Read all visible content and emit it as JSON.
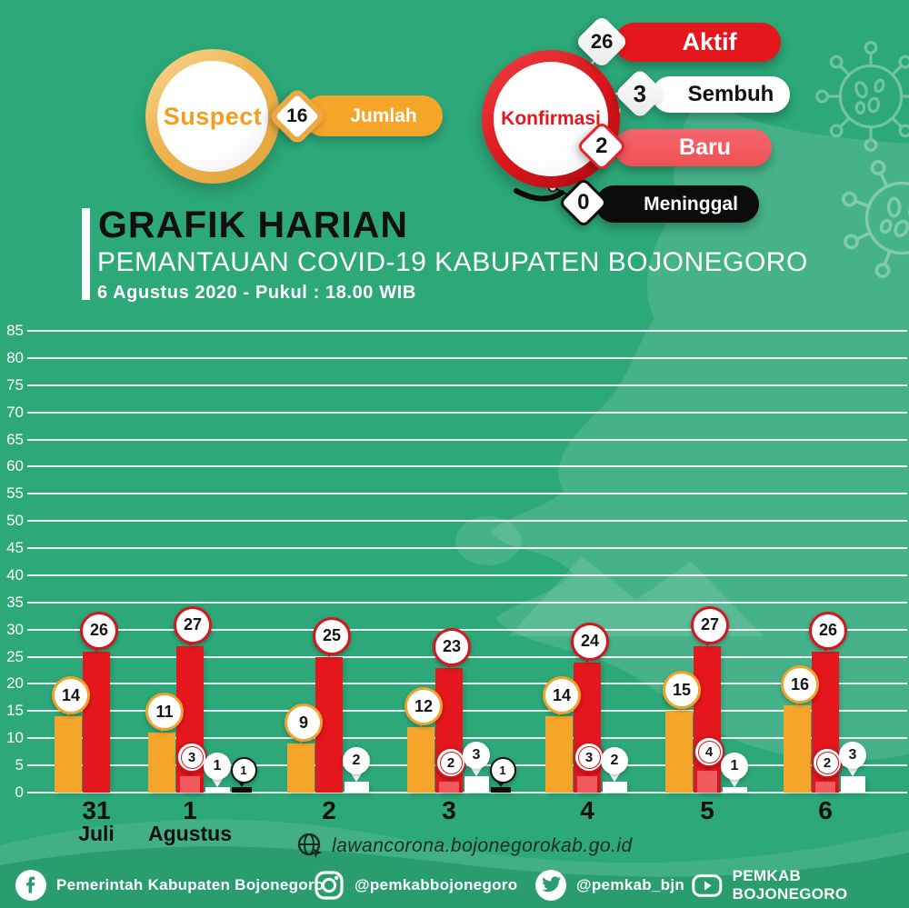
{
  "colors": {
    "background": "#2ca879",
    "map_overlay": "rgba(255,255,255,0.12)",
    "footer_band": "#2a9d6e",
    "orange": "#f5a62a",
    "red": "#e6161d",
    "salmon": "#f25a60",
    "white": "#ffffff",
    "black": "#0d0d0d",
    "gold": "#eda943",
    "gridline": "#ffffff"
  },
  "suspect_badge": {
    "label": "Suspect",
    "count": "16",
    "count_label": "Jumlah"
  },
  "konfirmasi_badge": {
    "label": "Konfirmasi",
    "items": [
      {
        "value": "26",
        "label": "Aktif"
      },
      {
        "value": "3",
        "label": "Sembuh"
      },
      {
        "value": "2",
        "label": "Baru"
      },
      {
        "value": "0",
        "label": "Meninggal"
      }
    ]
  },
  "title": {
    "line1": "GRAFIK HARIAN",
    "line2": "PEMANTAUAN COVID-19 KABUPATEN BOJONEGORO",
    "line3": "6 Agustus 2020 - Pukul : 18.00 WIB"
  },
  "website": {
    "url": "lawancorona.bojonegorokab.go.id"
  },
  "footer": {
    "items": [
      {
        "icon": "facebook-icon",
        "label": "Pemerintah Kabupaten Bojonegoro"
      },
      {
        "icon": "instagram-icon",
        "label": "@pemkabbojonegoro"
      },
      {
        "icon": "twitter-icon",
        "label": "@pemkab_bjn"
      },
      {
        "icon": "youtube-icon",
        "label": "PEMKAB BOJONEGORO"
      }
    ]
  },
  "chart_data": {
    "type": "bar",
    "title": "GRAFIK HARIAN - PEMANTAUAN COVID-19 KABUPATEN BOJONEGORO",
    "categories": [
      "31 Juli",
      "1 Agustus",
      "2 Agustus",
      "3 Agustus",
      "4 Agustus",
      "5 Agustus",
      "6 Agustus"
    ],
    "x_tick_labels": [
      [
        "31",
        "Juli"
      ],
      [
        "1",
        "Agustus"
      ],
      [
        "2"
      ],
      [
        "3"
      ],
      [
        "4"
      ],
      [
        "5"
      ],
      [
        "6"
      ]
    ],
    "series": [
      {
        "name": "Suspect",
        "color_key": "orange",
        "values": [
          14,
          11,
          9,
          12,
          14,
          15,
          16
        ]
      },
      {
        "name": "Aktif",
        "color_key": "red",
        "values": [
          26,
          27,
          25,
          23,
          24,
          27,
          26
        ]
      },
      {
        "name": "Baru",
        "color_key": "salmon",
        "values": [
          null,
          3,
          null,
          2,
          3,
          4,
          2
        ]
      },
      {
        "name": "Sembuh",
        "color_key": "white",
        "values": [
          null,
          1,
          2,
          3,
          2,
          1,
          3
        ]
      },
      {
        "name": "Meninggal",
        "color_key": "black",
        "values": [
          null,
          1,
          null,
          1,
          null,
          null,
          null
        ]
      }
    ],
    "ylim": [
      0,
      85
    ],
    "ytick_step": 5,
    "grid": true,
    "legend": "none"
  }
}
